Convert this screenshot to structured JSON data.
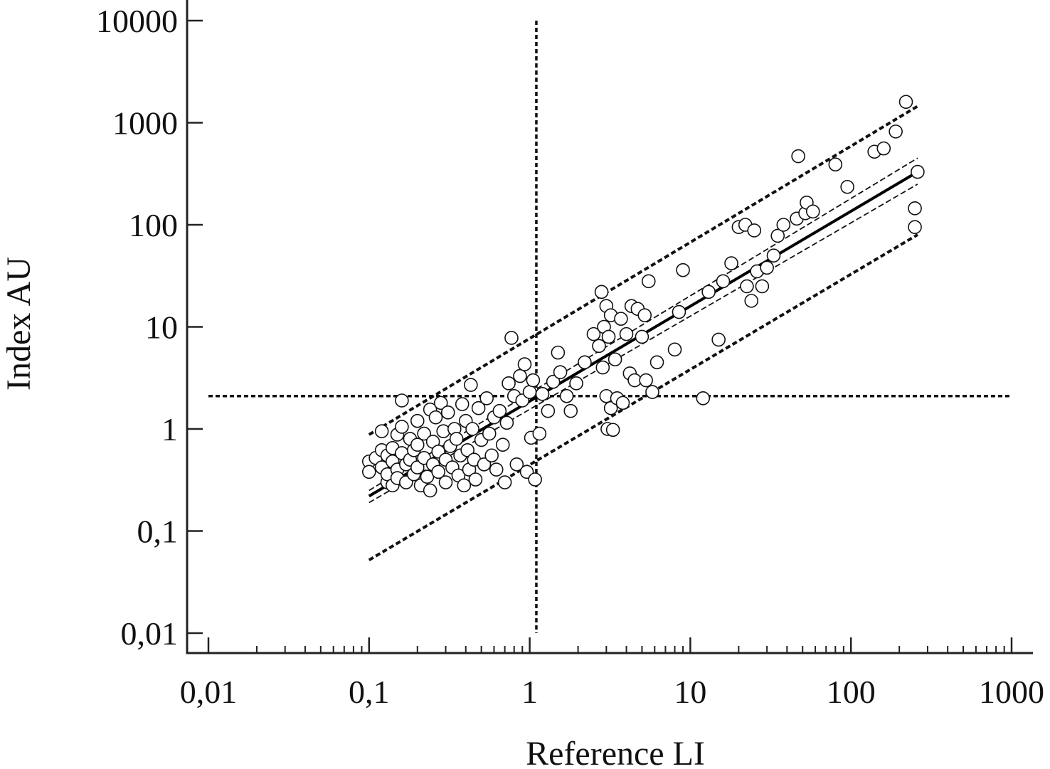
{
  "chart_data": {
    "type": "scatter",
    "title": "",
    "xlabel": "Reference LI",
    "ylabel": "Index AU",
    "x_scale": "log",
    "y_scale": "log",
    "xlim": [
      0.01,
      1000
    ],
    "ylim": [
      0.01,
      10000
    ],
    "x_ticks": [
      {
        "value": 0.01,
        "label": "0,01"
      },
      {
        "value": 0.1,
        "label": "0,1"
      },
      {
        "value": 1,
        "label": "1"
      },
      {
        "value": 10,
        "label": "10"
      },
      {
        "value": 100,
        "label": "100"
      },
      {
        "value": 1000,
        "label": "1000"
      }
    ],
    "y_ticks": [
      {
        "value": 0.01,
        "label": "0,01"
      },
      {
        "value": 0.1,
        "label": "0,1"
      },
      {
        "value": 1,
        "label": "1"
      },
      {
        "value": 10,
        "label": "10"
      },
      {
        "value": 100,
        "label": "100"
      },
      {
        "value": 1000,
        "label": "1000"
      },
      {
        "value": 10000,
        "label": "10000"
      }
    ],
    "grid": false,
    "legend": "none",
    "regression_line": {
      "x": [
        0.1,
        260
      ],
      "y": [
        0.22,
        330
      ]
    },
    "confidence_band": {
      "lower": {
        "x": [
          0.1,
          260
        ],
        "y": [
          0.19,
          250
        ]
      },
      "upper": {
        "x": [
          0.1,
          260
        ],
        "y": [
          0.25,
          450
        ]
      }
    },
    "prediction_band": {
      "lower": {
        "x": [
          0.1,
          260
        ],
        "y": [
          0.052,
          80
        ]
      },
      "upper": {
        "x": [
          0.1,
          260
        ],
        "y": [
          0.88,
          1450
        ]
      }
    },
    "cutoff_x": 1.1,
    "cutoff_y": 2.1,
    "points": [
      {
        "x": 0.1,
        "y": 0.48
      },
      {
        "x": 0.1,
        "y": 0.38
      },
      {
        "x": 0.11,
        "y": 0.52
      },
      {
        "x": 0.12,
        "y": 0.95
      },
      {
        "x": 0.12,
        "y": 0.62
      },
      {
        "x": 0.12,
        "y": 0.42
      },
      {
        "x": 0.13,
        "y": 0.3
      },
      {
        "x": 0.13,
        "y": 0.36
      },
      {
        "x": 0.13,
        "y": 0.55
      },
      {
        "x": 0.14,
        "y": 0.65
      },
      {
        "x": 0.14,
        "y": 0.48
      },
      {
        "x": 0.14,
        "y": 0.28
      },
      {
        "x": 0.15,
        "y": 0.88
      },
      {
        "x": 0.15,
        "y": 0.4
      },
      {
        "x": 0.15,
        "y": 0.33
      },
      {
        "x": 0.16,
        "y": 1.9
      },
      {
        "x": 0.16,
        "y": 1.05
      },
      {
        "x": 0.16,
        "y": 0.58
      },
      {
        "x": 0.17,
        "y": 0.45
      },
      {
        "x": 0.17,
        "y": 0.3
      },
      {
        "x": 0.18,
        "y": 0.8
      },
      {
        "x": 0.18,
        "y": 0.5
      },
      {
        "x": 0.19,
        "y": 0.36
      },
      {
        "x": 0.19,
        "y": 0.62
      },
      {
        "x": 0.2,
        "y": 1.2
      },
      {
        "x": 0.2,
        "y": 0.7
      },
      {
        "x": 0.2,
        "y": 0.42
      },
      {
        "x": 0.21,
        "y": 0.28
      },
      {
        "x": 0.22,
        "y": 0.9
      },
      {
        "x": 0.22,
        "y": 0.52
      },
      {
        "x": 0.23,
        "y": 0.34
      },
      {
        "x": 0.24,
        "y": 0.25
      },
      {
        "x": 0.24,
        "y": 1.55
      },
      {
        "x": 0.25,
        "y": 0.75
      },
      {
        "x": 0.25,
        "y": 0.45
      },
      {
        "x": 0.26,
        "y": 1.3
      },
      {
        "x": 0.27,
        "y": 0.6
      },
      {
        "x": 0.27,
        "y": 0.38
      },
      {
        "x": 0.28,
        "y": 1.8
      },
      {
        "x": 0.29,
        "y": 0.95
      },
      {
        "x": 0.3,
        "y": 0.5
      },
      {
        "x": 0.3,
        "y": 0.3
      },
      {
        "x": 0.31,
        "y": 1.45
      },
      {
        "x": 0.32,
        "y": 0.68
      },
      {
        "x": 0.33,
        "y": 0.42
      },
      {
        "x": 0.34,
        "y": 1.0
      },
      {
        "x": 0.35,
        "y": 0.8
      },
      {
        "x": 0.36,
        "y": 0.35
      },
      {
        "x": 0.37,
        "y": 0.55
      },
      {
        "x": 0.38,
        "y": 1.75
      },
      {
        "x": 0.39,
        "y": 0.28
      },
      {
        "x": 0.4,
        "y": 1.2
      },
      {
        "x": 0.41,
        "y": 0.62
      },
      {
        "x": 0.42,
        "y": 0.4
      },
      {
        "x": 0.43,
        "y": 2.7
      },
      {
        "x": 0.44,
        "y": 1.0
      },
      {
        "x": 0.45,
        "y": 0.5
      },
      {
        "x": 0.46,
        "y": 0.32
      },
      {
        "x": 0.48,
        "y": 1.6
      },
      {
        "x": 0.5,
        "y": 0.78
      },
      {
        "x": 0.52,
        "y": 0.45
      },
      {
        "x": 0.54,
        "y": 2.0
      },
      {
        "x": 0.56,
        "y": 0.9
      },
      {
        "x": 0.58,
        "y": 0.55
      },
      {
        "x": 0.6,
        "y": 1.3
      },
      {
        "x": 0.62,
        "y": 0.4
      },
      {
        "x": 0.65,
        "y": 1.5
      },
      {
        "x": 0.68,
        "y": 0.7
      },
      {
        "x": 0.7,
        "y": 0.3
      },
      {
        "x": 0.72,
        "y": 1.15
      },
      {
        "x": 0.74,
        "y": 2.8
      },
      {
        "x": 0.77,
        "y": 7.8
      },
      {
        "x": 0.8,
        "y": 2.1
      },
      {
        "x": 0.83,
        "y": 0.45
      },
      {
        "x": 0.87,
        "y": 3.3
      },
      {
        "x": 0.9,
        "y": 1.9
      },
      {
        "x": 0.93,
        "y": 4.3
      },
      {
        "x": 0.96,
        "y": 0.38
      },
      {
        "x": 1.0,
        "y": 2.3
      },
      {
        "x": 1.02,
        "y": 0.82
      },
      {
        "x": 1.05,
        "y": 3.0
      },
      {
        "x": 1.08,
        "y": 0.32
      },
      {
        "x": 1.15,
        "y": 0.9
      },
      {
        "x": 1.2,
        "y": 2.2
      },
      {
        "x": 1.3,
        "y": 1.5
      },
      {
        "x": 1.4,
        "y": 2.9
      },
      {
        "x": 1.5,
        "y": 5.6
      },
      {
        "x": 1.55,
        "y": 3.6
      },
      {
        "x": 1.7,
        "y": 2.1
      },
      {
        "x": 1.8,
        "y": 1.5
      },
      {
        "x": 1.95,
        "y": 2.8
      },
      {
        "x": 2.2,
        "y": 4.5
      },
      {
        "x": 2.5,
        "y": 8.5
      },
      {
        "x": 2.7,
        "y": 6.5
      },
      {
        "x": 2.8,
        "y": 22.0
      },
      {
        "x": 2.85,
        "y": 4.0
      },
      {
        "x": 2.9,
        "y": 10.0
      },
      {
        "x": 3.0,
        "y": 16.0
      },
      {
        "x": 3.0,
        "y": 2.1
      },
      {
        "x": 3.05,
        "y": 1.0
      },
      {
        "x": 3.1,
        "y": 8.0
      },
      {
        "x": 3.2,
        "y": 13.0
      },
      {
        "x": 3.2,
        "y": 1.6
      },
      {
        "x": 3.3,
        "y": 0.98
      },
      {
        "x": 3.4,
        "y": 4.8
      },
      {
        "x": 3.5,
        "y": 2.0
      },
      {
        "x": 3.7,
        "y": 12.0
      },
      {
        "x": 3.8,
        "y": 1.8
      },
      {
        "x": 4.0,
        "y": 8.5
      },
      {
        "x": 4.2,
        "y": 3.5
      },
      {
        "x": 4.3,
        "y": 16.0
      },
      {
        "x": 4.5,
        "y": 3.0
      },
      {
        "x": 4.7,
        "y": 15.0
      },
      {
        "x": 5.0,
        "y": 8.0
      },
      {
        "x": 5.2,
        "y": 13.0
      },
      {
        "x": 5.3,
        "y": 3.0
      },
      {
        "x": 5.5,
        "y": 28.0
      },
      {
        "x": 5.8,
        "y": 2.3
      },
      {
        "x": 6.2,
        "y": 4.5
      },
      {
        "x": 8.0,
        "y": 6.0
      },
      {
        "x": 8.5,
        "y": 14.0
      },
      {
        "x": 9.0,
        "y": 36.0
      },
      {
        "x": 12.0,
        "y": 2.0
      },
      {
        "x": 13.0,
        "y": 22.0
      },
      {
        "x": 15.0,
        "y": 7.5
      },
      {
        "x": 16.0,
        "y": 28.0
      },
      {
        "x": 18.0,
        "y": 42.0
      },
      {
        "x": 20.0,
        "y": 95.0
      },
      {
        "x": 22.0,
        "y": 100.0
      },
      {
        "x": 22.5,
        "y": 25.0
      },
      {
        "x": 24.0,
        "y": 18.0
      },
      {
        "x": 25.0,
        "y": 88.0
      },
      {
        "x": 26.0,
        "y": 35.0
      },
      {
        "x": 28.0,
        "y": 25.0
      },
      {
        "x": 30.0,
        "y": 38.0
      },
      {
        "x": 33.0,
        "y": 50.0
      },
      {
        "x": 35.0,
        "y": 78.0
      },
      {
        "x": 38.0,
        "y": 100.0
      },
      {
        "x": 46.0,
        "y": 115.0
      },
      {
        "x": 47.0,
        "y": 470.0
      },
      {
        "x": 52.0,
        "y": 130.0
      },
      {
        "x": 53.0,
        "y": 165.0
      },
      {
        "x": 58.0,
        "y": 135.0
      },
      {
        "x": 80.0,
        "y": 390.0
      },
      {
        "x": 95.0,
        "y": 235.0
      },
      {
        "x": 140.0,
        "y": 520.0
      },
      {
        "x": 160.0,
        "y": 560.0
      },
      {
        "x": 190.0,
        "y": 820.0
      },
      {
        "x": 220.0,
        "y": 1600.0
      },
      {
        "x": 250.0,
        "y": 145.0
      },
      {
        "x": 250.0,
        "y": 95.0
      },
      {
        "x": 260.0,
        "y": 330.0
      }
    ]
  }
}
